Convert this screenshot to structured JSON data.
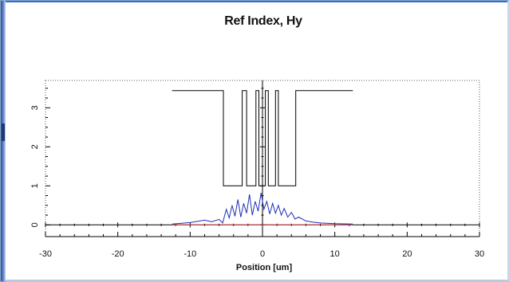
{
  "chart_data": {
    "type": "line",
    "title": "Ref Index, Hy",
    "xlabel": "Position [um]",
    "ylabel": "",
    "xlim": [
      -30,
      30
    ],
    "ylim": [
      -0.3,
      3.7
    ],
    "x_ticks": [
      -30,
      -20,
      -10,
      0,
      10,
      20,
      30
    ],
    "y_ticks": [
      0,
      1,
      2,
      3
    ],
    "grid": false,
    "series": [
      {
        "color": "#000000",
        "x": [
          -12.5,
          -5.4,
          -5.4,
          -2.8,
          -2.8,
          -2.2,
          -2.2,
          -0.9,
          -0.9,
          -0.5,
          -0.5,
          0.4,
          0.4,
          0.8,
          0.8,
          1.8,
          1.8,
          2.2,
          2.2,
          4.6,
          4.6,
          12.5
        ],
        "y": [
          3.44,
          3.44,
          1.0,
          1.0,
          3.44,
          3.44,
          1.0,
          1.0,
          3.44,
          3.44,
          1.0,
          1.0,
          3.44,
          3.44,
          1.0,
          1.0,
          3.44,
          3.44,
          1.0,
          1.0,
          3.44,
          3.44
        ]
      },
      {
        "color": "#1f2fb5",
        "x": [
          -12.5,
          -10,
          -8,
          -7,
          -6,
          -5.5,
          -5,
          -4.6,
          -4.2,
          -3.8,
          -3.4,
          -3.0,
          -2.6,
          -2.2,
          -1.8,
          -1.4,
          -1.0,
          -0.6,
          -0.2,
          0.2,
          0.6,
          1.0,
          1.4,
          1.8,
          2.2,
          2.6,
          3.0,
          3.5,
          4.0,
          4.5,
          5.0,
          6.0,
          7.0,
          8.0,
          10.0,
          12.5
        ],
        "y": [
          0.02,
          0.06,
          0.12,
          0.08,
          0.14,
          0.05,
          0.4,
          0.18,
          0.5,
          0.22,
          0.65,
          0.2,
          0.55,
          0.3,
          0.78,
          0.25,
          0.6,
          0.35,
          0.82,
          0.4,
          0.6,
          0.28,
          0.55,
          0.3,
          0.5,
          0.25,
          0.42,
          0.2,
          0.32,
          0.15,
          0.2,
          0.1,
          0.07,
          0.05,
          0.03,
          0.02
        ]
      },
      {
        "color": "#d23a3a",
        "x": [
          -12.5,
          12.5
        ],
        "y": [
          0.0,
          0.0
        ]
      }
    ]
  }
}
